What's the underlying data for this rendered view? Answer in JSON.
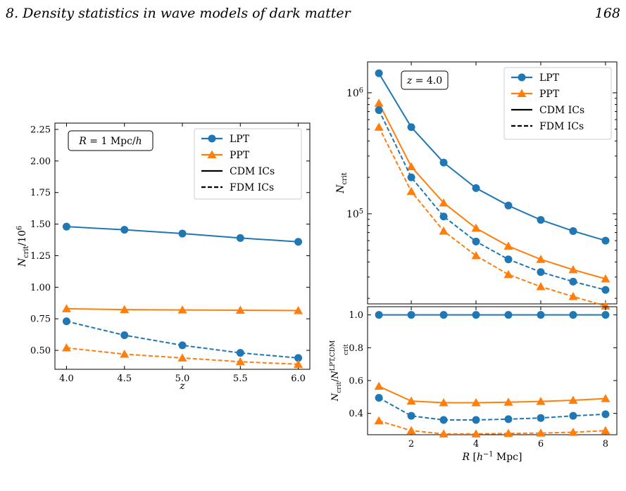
{
  "header": {
    "title": "8. Density statistics in wave models of dark matter",
    "page_number": "168"
  },
  "colors": {
    "lpt": "#1f77b4",
    "ppt": "#ff7f0e"
  },
  "chart_data": [
    {
      "type": "line",
      "panel": "left",
      "annotation": "R = 1 Mpc/h",
      "xlabel": "z",
      "ylabel": "N_crit / 10^6",
      "xlim": [
        3.9,
        6.1
      ],
      "ylim": [
        0.35,
        2.3
      ],
      "xticks": [
        4.0,
        4.5,
        5.0,
        5.5,
        6.0
      ],
      "xtick_labels": [
        "4.0",
        "4.5",
        "5.0",
        "5.5",
        "6.0"
      ],
      "yticks": [
        0.5,
        0.75,
        1.0,
        1.25,
        1.5,
        1.75,
        2.0,
        2.25
      ],
      "ytick_labels": [
        "0.50",
        "0.75",
        "1.00",
        "1.25",
        "1.50",
        "1.75",
        "2.00",
        "2.25"
      ],
      "legend_position": "top-right",
      "legend": [
        "LPT",
        "PPT",
        "CDM ICs",
        "FDM ICs"
      ],
      "x": [
        4.0,
        4.5,
        5.0,
        5.5,
        6.0
      ],
      "series": [
        {
          "name": "LPT CDM ICs",
          "method": "LPT",
          "ics": "CDM",
          "values": [
            1.48,
            1.455,
            1.425,
            1.39,
            1.36
          ]
        },
        {
          "name": "PPT CDM ICs",
          "method": "PPT",
          "ics": "CDM",
          "values": [
            0.83,
            0.823,
            0.82,
            0.818,
            0.815
          ]
        },
        {
          "name": "LPT FDM ICs",
          "method": "LPT",
          "ics": "FDM",
          "values": [
            0.73,
            0.62,
            0.54,
            0.48,
            0.44
          ]
        },
        {
          "name": "PPT FDM ICs",
          "method": "PPT",
          "ics": "FDM",
          "values": [
            0.52,
            0.47,
            0.44,
            0.41,
            0.39
          ]
        }
      ]
    },
    {
      "type": "line",
      "panel": "right-top",
      "annotation": "z = 4.0",
      "xlabel": "",
      "ylabel": "N_crit",
      "yscale": "log",
      "xlim": [
        0.65,
        8.35
      ],
      "ylim": [
        18000,
        1800000
      ],
      "yticks": [
        100000,
        1000000
      ],
      "ytick_labels": [
        "10^5",
        "10^6"
      ],
      "legend_position": "top-right",
      "legend": [
        "LPT",
        "PPT",
        "CDM ICs",
        "FDM ICs"
      ],
      "x": [
        1,
        2,
        3,
        4,
        5,
        6,
        7,
        8
      ],
      "series": [
        {
          "name": "LPT CDM ICs",
          "method": "LPT",
          "ics": "CDM",
          "values": [
            1450000,
            520000,
            265000,
            163000,
            117000,
            89000,
            72000,
            60000
          ]
        },
        {
          "name": "PPT CDM ICs",
          "method": "PPT",
          "ics": "CDM",
          "values": [
            820000,
            245000,
            123000,
            76000,
            54000,
            42000,
            34500,
            29000
          ]
        },
        {
          "name": "LPT FDM ICs",
          "method": "LPT",
          "ics": "FDM",
          "values": [
            720000,
            200000,
            95000,
            59000,
            42000,
            33000,
            27500,
            23500
          ]
        },
        {
          "name": "PPT FDM ICs",
          "method": "PPT",
          "ics": "FDM",
          "values": [
            520000,
            153000,
            72000,
            45000,
            31500,
            25000,
            20700,
            17300
          ]
        }
      ]
    },
    {
      "type": "line",
      "panel": "right-bottom",
      "xlabel": "R [h^-1 Mpc]",
      "ylabel": "N_crit / N_crit^LPT,CDM",
      "xlim": [
        0.65,
        8.35
      ],
      "ylim": [
        0.27,
        1.05
      ],
      "xticks": [
        2,
        4,
        6,
        8
      ],
      "xtick_labels": [
        "2",
        "4",
        "6",
        "8"
      ],
      "yticks": [
        0.4,
        0.6,
        0.8,
        1.0
      ],
      "ytick_labels": [
        "0.4",
        "0.6",
        "0.8",
        "1.0"
      ],
      "x": [
        1,
        2,
        3,
        4,
        5,
        6,
        7,
        8
      ],
      "series": [
        {
          "name": "LPT CDM ICs",
          "method": "LPT",
          "ics": "CDM",
          "values": [
            1.0,
            1.0,
            1.0,
            1.0,
            1.0,
            1.0,
            1.0,
            1.0
          ]
        },
        {
          "name": "PPT CDM ICs",
          "method": "PPT",
          "ics": "CDM",
          "values": [
            0.565,
            0.475,
            0.465,
            0.465,
            0.468,
            0.473,
            0.48,
            0.49
          ]
        },
        {
          "name": "LPT FDM ICs",
          "method": "LPT",
          "ics": "FDM",
          "values": [
            0.495,
            0.385,
            0.36,
            0.36,
            0.365,
            0.372,
            0.385,
            0.395
          ]
        },
        {
          "name": "PPT FDM ICs",
          "method": "PPT",
          "ics": "FDM",
          "values": [
            0.355,
            0.295,
            0.275,
            0.275,
            0.278,
            0.28,
            0.285,
            0.295
          ]
        }
      ]
    }
  ]
}
